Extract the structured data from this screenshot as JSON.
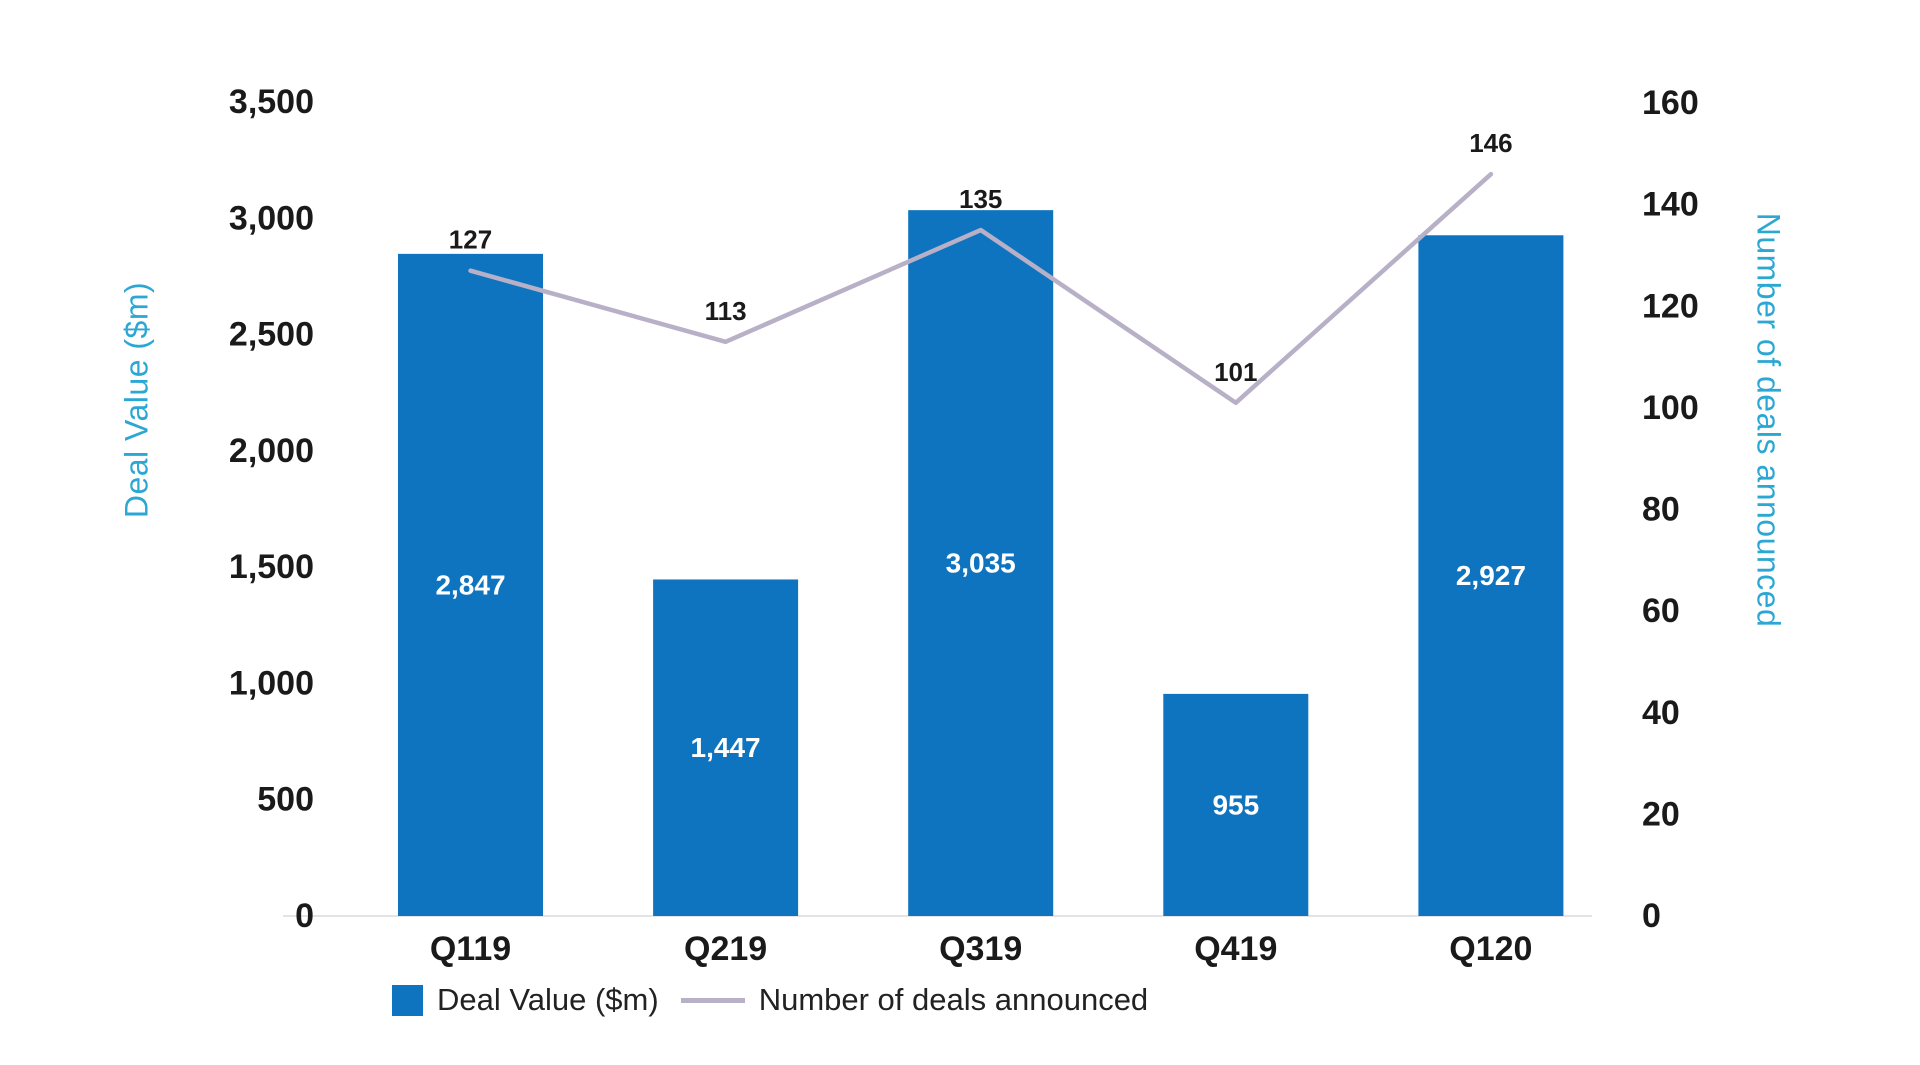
{
  "chart_data": {
    "type": "bar+line combo",
    "categories": [
      "Q119",
      "Q219",
      "Q319",
      "Q419",
      "Q120"
    ],
    "series": [
      {
        "name": "Deal Value ($m)",
        "type": "bar",
        "axis": "left",
        "values": [
          2847,
          1447,
          3035,
          955,
          2927
        ],
        "labels": [
          "2,847",
          "1,447",
          "3,035",
          "955",
          "2,927"
        ],
        "color": "#0E74C0",
        "label_color": "#ffffff"
      },
      {
        "name": "Number of deals announced",
        "type": "line",
        "axis": "right",
        "values": [
          127,
          113,
          135,
          101,
          146
        ],
        "labels": [
          "127",
          "113",
          "135",
          "101",
          "146"
        ],
        "color": "#B7B0C7",
        "label_color": "#1a1a1a"
      }
    ],
    "left_axis": {
      "title": "Deal Value ($m)",
      "min": 0,
      "max": 3500,
      "step": 500,
      "ticks": [
        "0",
        "500",
        "1,000",
        "1,500",
        "2,000",
        "2,500",
        "3,000",
        "3,500"
      ]
    },
    "right_axis": {
      "title": "Number of deals announced",
      "min": 0,
      "max": 160,
      "step": 20,
      "ticks": [
        "0",
        "20",
        "40",
        "60",
        "80",
        "100",
        "120",
        "140",
        "160"
      ]
    },
    "legend": [
      {
        "label": "Deal Value ($m)",
        "swatch": "square",
        "color": "#0E74C0"
      },
      {
        "label": "Number of deals announced",
        "swatch": "line",
        "color": "#B7B0C7"
      }
    ],
    "grid": false,
    "legend_position": "bottom-left",
    "title": "",
    "colors": {
      "bar": "#0E74C0",
      "line": "#B7B0C7",
      "axis_title": "#2BA7D4",
      "tick_label": "#1a1a1a",
      "baseline": "#e4e4e4",
      "background": "#ffffff"
    }
  }
}
